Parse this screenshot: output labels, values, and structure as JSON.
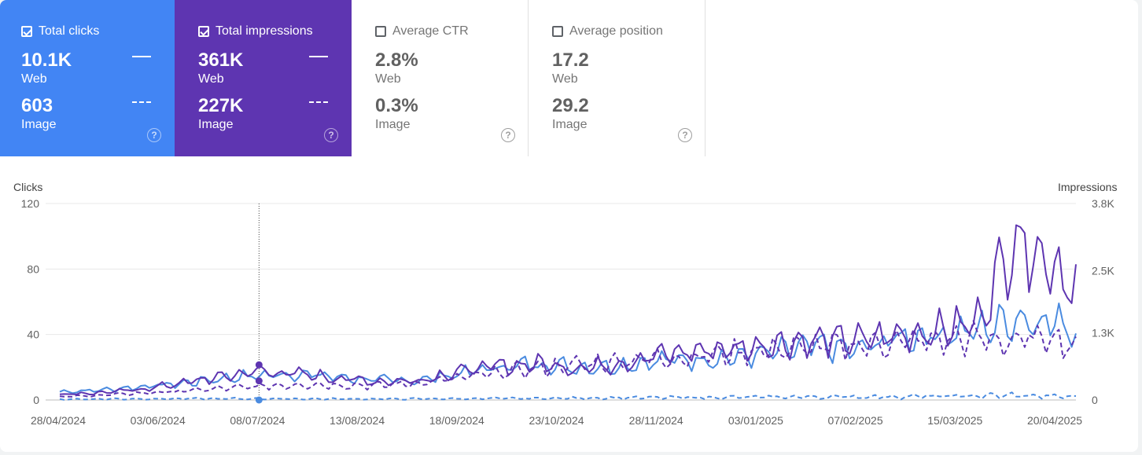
{
  "metrics": [
    {
      "label": "Total clicks",
      "checked": true,
      "web_value": "10.1K",
      "web_label": "Web",
      "image_value": "603",
      "image_label": "Image"
    },
    {
      "label": "Total impressions",
      "checked": true,
      "web_value": "361K",
      "web_label": "Web",
      "image_value": "227K",
      "image_label": "Image"
    },
    {
      "label": "Average CTR",
      "checked": false,
      "web_value": "2.8%",
      "web_label": "Web",
      "image_value": "0.3%",
      "image_label": "Image"
    },
    {
      "label": "Average position",
      "checked": false,
      "web_value": "17.2",
      "web_label": "Web",
      "image_value": "29.2",
      "image_label": "Image"
    }
  ],
  "help_glyph": "?",
  "colors": {
    "clicks": "#4a8be0",
    "impressions": "#5e35b1",
    "clicks_card": "#4285f4",
    "impressions_card": "#5e35b1"
  },
  "chart_data": {
    "type": "line",
    "left_axis_title": "Clicks",
    "right_axis_title": "Impressions",
    "ylim_left": [
      0,
      120
    ],
    "ylim_right": [
      0,
      3800
    ],
    "left_ticks": [
      "120",
      "80",
      "40",
      "0"
    ],
    "left_tick_values": [
      120,
      80,
      40,
      0
    ],
    "right_ticks": [
      "3.8K",
      "2.5K",
      "1.3K",
      "0"
    ],
    "right_tick_values": [
      3800,
      2500,
      1300,
      0
    ],
    "x_ticks": [
      "28/04/2024",
      "03/06/2024",
      "08/07/2024",
      "13/08/2024",
      "18/09/2024",
      "23/10/2024",
      "28/11/2024",
      "03/01/2025",
      "07/02/2025",
      "15/03/2025",
      "20/04/2025"
    ],
    "start_date": "2024-04-28",
    "end_date": "2025-04-20",
    "hover_date": "2024-07-07",
    "series": [
      {
        "name": "Clicks (Web)",
        "axis": "left",
        "style": "solid",
        "color": "#4a8be0",
        "points": [
          [
            0,
            5
          ],
          [
            14,
            6
          ],
          [
            28,
            8
          ],
          [
            42,
            10
          ],
          [
            56,
            13
          ],
          [
            70,
            15
          ],
          [
            84,
            16
          ],
          [
            98,
            14
          ],
          [
            112,
            12
          ],
          [
            126,
            12
          ],
          [
            140,
            16
          ],
          [
            154,
            20
          ],
          [
            168,
            22
          ],
          [
            182,
            20
          ],
          [
            196,
            21
          ],
          [
            210,
            24
          ],
          [
            224,
            25
          ],
          [
            238,
            26
          ],
          [
            252,
            29
          ],
          [
            266,
            33
          ],
          [
            280,
            30
          ],
          [
            294,
            38
          ],
          [
            308,
            40
          ],
          [
            322,
            42
          ],
          [
            336,
            50
          ],
          [
            350,
            48
          ],
          [
            357,
            42
          ]
        ]
      },
      {
        "name": "Impressions (Web)",
        "axis": "right",
        "style": "solid",
        "color": "#5e35b1",
        "points": [
          [
            0,
            110
          ],
          [
            14,
            140
          ],
          [
            28,
            200
          ],
          [
            42,
            320
          ],
          [
            56,
            440
          ],
          [
            70,
            560
          ],
          [
            84,
            500
          ],
          [
            98,
            420
          ],
          [
            112,
            360
          ],
          [
            126,
            380
          ],
          [
            140,
            560
          ],
          [
            154,
            650
          ],
          [
            168,
            700
          ],
          [
            182,
            620
          ],
          [
            196,
            700
          ],
          [
            210,
            870
          ],
          [
            224,
            950
          ],
          [
            238,
            1000
          ],
          [
            252,
            1100
          ],
          [
            266,
            1150
          ],
          [
            280,
            1150
          ],
          [
            294,
            1250
          ],
          [
            308,
            1350
          ],
          [
            322,
            1500
          ],
          [
            336,
            3200
          ],
          [
            350,
            2600
          ],
          [
            357,
            2250
          ]
        ]
      },
      {
        "name": "Impressions (Image)",
        "axis": "right",
        "style": "dashed",
        "color": "#5e35b1",
        "points": [
          [
            0,
            60
          ],
          [
            14,
            90
          ],
          [
            28,
            130
          ],
          [
            42,
            170
          ],
          [
            56,
            220
          ],
          [
            70,
            260
          ],
          [
            84,
            300
          ],
          [
            98,
            290
          ],
          [
            112,
            280
          ],
          [
            126,
            330
          ],
          [
            140,
            420
          ],
          [
            154,
            520
          ],
          [
            168,
            620
          ],
          [
            182,
            680
          ],
          [
            196,
            760
          ],
          [
            210,
            800
          ],
          [
            224,
            850
          ],
          [
            238,
            920
          ],
          [
            252,
            980
          ],
          [
            266,
            1020
          ],
          [
            280,
            1060
          ],
          [
            294,
            1120
          ],
          [
            308,
            1150
          ],
          [
            322,
            1200
          ],
          [
            336,
            1120
          ],
          [
            350,
            1250
          ],
          [
            357,
            950
          ]
        ]
      },
      {
        "name": "Clicks (Image)",
        "axis": "left",
        "style": "dashed",
        "color": "#4a8be0",
        "points": [
          [
            0,
            0.5
          ],
          [
            28,
            0.7
          ],
          [
            56,
            0.8
          ],
          [
            84,
            0.7
          ],
          [
            112,
            0.6
          ],
          [
            140,
            0.8
          ],
          [
            168,
            1.0
          ],
          [
            196,
            1.3
          ],
          [
            224,
            1.5
          ],
          [
            252,
            1.8
          ],
          [
            280,
            2.0
          ],
          [
            308,
            2.2
          ],
          [
            336,
            2.8
          ],
          [
            357,
            1.8
          ]
        ]
      }
    ],
    "hover_values": {
      "clicks_web": "0",
      "impressions_web": "680",
      "impressions_image": "370"
    }
  }
}
